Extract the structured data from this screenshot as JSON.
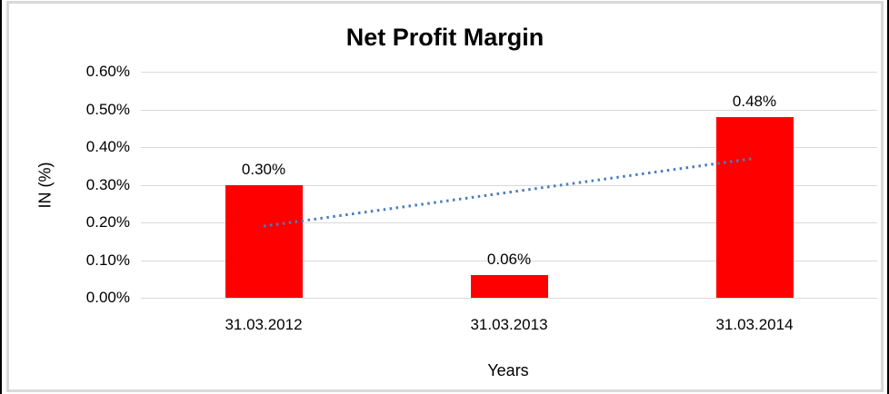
{
  "window": {
    "outer_border_color": "#000000",
    "frame_border_color": "#d9d9d9",
    "background": "#ffffff"
  },
  "chart_data": {
    "type": "bar",
    "title": "Net Profit Margin",
    "xlabel": "Years",
    "ylabel": "IN (%)",
    "categories": [
      "31.03.2012",
      "31.03.2013",
      "31.03.2014"
    ],
    "values": [
      0.3,
      0.06,
      0.48
    ],
    "data_labels": [
      "0.30%",
      "0.06%",
      "0.48%"
    ],
    "series_name": "Net Profit Margin",
    "ylim": [
      0,
      0.6
    ],
    "ytick_step": 0.1,
    "ytick_labels": [
      "0.00%",
      "0.10%",
      "0.20%",
      "0.30%",
      "0.40%",
      "0.50%",
      "0.60%"
    ],
    "grid": true,
    "legend": "none",
    "bar_color": "#ff0000",
    "gridline_color": "#d9d9d9",
    "text_color": "#000000",
    "trendline": {
      "type": "linear",
      "style": "dotted",
      "color": "#4a7dbf",
      "start_category_index": 0,
      "end_category_index": 2,
      "y_start": 0.19,
      "y_end": 0.37
    }
  }
}
